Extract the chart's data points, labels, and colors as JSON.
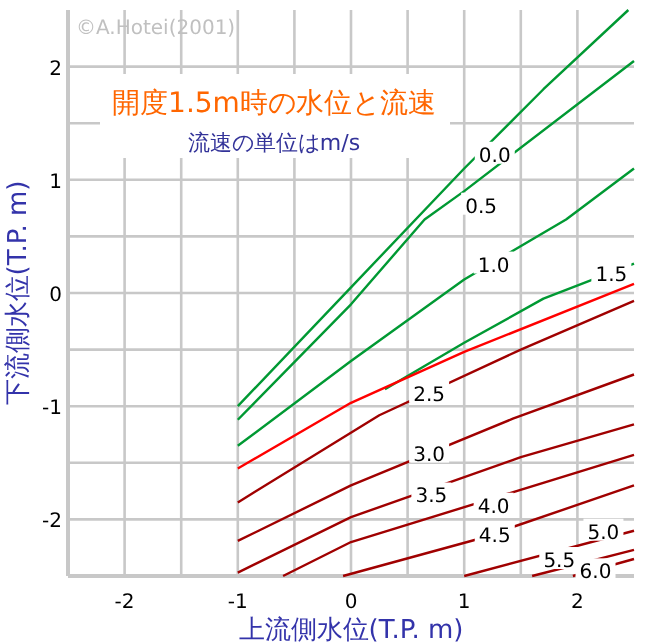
{
  "chart_data": {
    "type": "line",
    "title": "開度1.5m時の水位と流速",
    "subtitle": "流速の単位はm/s",
    "xlabel": "上流側水位(T.P. m)",
    "ylabel": "下流側水位(T.P. m)",
    "xlim": [
      -2.5,
      2.5
    ],
    "ylim": [
      -2.5,
      2.5
    ],
    "xticks": [
      {
        "value": -2.5,
        "label": null
      },
      -2,
      {
        "value": -1.5,
        "label": null
      },
      -1,
      {
        "value": -0.5,
        "label": null
      },
      0,
      {
        "value": 0.5,
        "label": null
      },
      1,
      {
        "value": 1.5,
        "label": null
      },
      2
    ],
    "yticks": [
      {
        "value": -2.5,
        "label": null
      },
      -2,
      {
        "value": -1.5,
        "label": null
      },
      -1,
      {
        "value": -0.5,
        "label": null
      },
      0,
      {
        "value": 0.5,
        "label": null
      },
      1,
      {
        "value": 1.5,
        "label": null
      },
      2
    ],
    "grid": true,
    "marker": "none",
    "line_style": "solid",
    "series": [
      {
        "color": "#009933",
        "x": [
          -1,
          0,
          1,
          1.7,
          2.45
        ],
        "values": [
          -1.0,
          0.05,
          1.1,
          1.8,
          2.5
        ]
      },
      {
        "color": "#009933",
        "x": [
          -1,
          0,
          0.65,
          1,
          2.5
        ],
        "values": [
          -1.12,
          -0.1,
          0.65,
          0.9,
          2.05
        ]
      },
      {
        "color": "#009933",
        "x": [
          -1,
          0,
          1,
          1.9,
          2.5
        ],
        "values": [
          -1.35,
          -0.6,
          0.12,
          0.65,
          1.1
        ]
      },
      {
        "color": "#009933",
        "x": [
          0.3,
          1,
          1.7,
          2.5
        ],
        "values": [
          -0.85,
          -0.44,
          -0.05,
          0.26
        ]
      },
      {
        "color": "#ff0000",
        "x": [
          -1,
          0,
          1,
          2.5
        ],
        "values": [
          -1.55,
          -0.97,
          -0.52,
          0.08
        ]
      },
      {
        "color": "#a00000",
        "x": [
          -1,
          0.25,
          1.5,
          2.5
        ],
        "values": [
          -1.85,
          -1.08,
          -0.5,
          -0.07
        ]
      },
      {
        "color": "#a00000",
        "x": [
          -1,
          0,
          1.43,
          2.5
        ],
        "values": [
          -2.19,
          -1.7,
          -1.11,
          -0.72
        ]
      },
      {
        "color": "#a00000",
        "x": [
          -1,
          0,
          1.5,
          2.5
        ],
        "values": [
          -2.47,
          -1.98,
          -1.45,
          -1.16
        ]
      },
      {
        "color": "#a00000",
        "x": [
          -0.6,
          0,
          2.5
        ],
        "values": [
          -2.5,
          -2.2,
          -1.43
        ]
      },
      {
        "color": "#a00000",
        "x": [
          -0.07,
          1.1,
          2.5
        ],
        "values": [
          -2.5,
          -2.18,
          -1.7
        ]
      },
      {
        "color": "#a00000",
        "x": [
          1.0,
          2.5
        ],
        "values": [
          -2.5,
          -2.1
        ]
      },
      {
        "color": "#a00000",
        "x": [
          1.6,
          2.5
        ],
        "values": [
          -2.5,
          -2.27
        ]
      },
      {
        "color": "#a00000",
        "x": [
          1.96,
          2.5
        ],
        "values": [
          -2.5,
          -2.35
        ]
      }
    ],
    "annotations": [
      "©A.Hotei(2001)",
      {
        "text": "0.0",
        "x": 1.27,
        "y": 1.23
      },
      {
        "text": "0.5",
        "x": 1.15,
        "y": 0.78
      },
      {
        "text": "1.0",
        "x": 1.26,
        "y": 0.26
      },
      {
        "text": "1.5",
        "x": 2.3,
        "y": 0.18
      },
      {
        "text": "2.5",
        "x": 0.69,
        "y": -0.88
      },
      {
        "text": "3.0",
        "x": 0.69,
        "y": -1.41
      },
      {
        "text": "3.5",
        "x": 0.71,
        "y": -1.78
      },
      {
        "text": "4.0",
        "x": 1.26,
        "y": -1.87
      },
      {
        "text": "4.5",
        "x": 1.27,
        "y": -2.13
      },
      {
        "text": "5.0",
        "x": 2.23,
        "y": -2.1
      },
      {
        "text": "5.5",
        "x": 1.84,
        "y": -2.35
      },
      {
        "text": "6.0",
        "x": 2.16,
        "y": -2.45
      }
    ]
  }
}
